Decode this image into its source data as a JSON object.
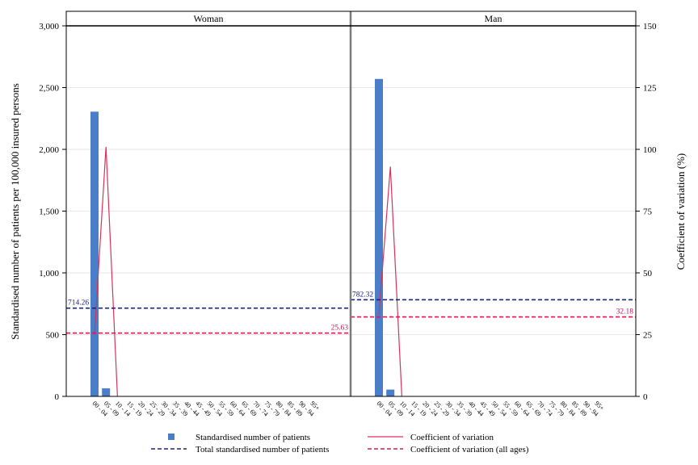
{
  "chart_data": {
    "type": "bar",
    "ylabel": "Standardised number of patients per 100,000 insured persons",
    "y2label": "Coefficient of variation (%)",
    "ylim": [
      0,
      3000
    ],
    "y2lim": [
      0,
      150
    ],
    "yticks": [
      0,
      500,
      1000,
      1500,
      2000,
      2500,
      3000
    ],
    "ytick_labels": [
      "0",
      "500",
      "1,000",
      "1,500",
      "2,000",
      "2,500",
      "3,000"
    ],
    "y2ticks": [
      0,
      25,
      50,
      75,
      100,
      125,
      150
    ],
    "y2tick_labels": [
      "0",
      "25",
      "50",
      "75",
      "100",
      "125",
      "150"
    ],
    "categories": [
      "00 - 04",
      "05 - 09",
      "10 - 14",
      "15 - 19",
      "20 - 24",
      "25 - 29",
      "30 - 34",
      "35 - 39",
      "40 - 44",
      "45 - 49",
      "50 - 54",
      "55 - 59",
      "60 - 64",
      "65 - 69",
      "70 - 74",
      "75 - 79",
      "80 - 84",
      "85 - 89",
      "90 - 94",
      "95+"
    ],
    "grid": true,
    "legend_position": "bottom",
    "panels": [
      {
        "title": "Woman",
        "bars": [
          2305,
          65,
          0,
          0,
          0,
          0,
          0,
          0,
          0,
          0,
          0,
          0,
          0,
          0,
          0,
          0,
          0,
          0,
          0,
          0
        ],
        "cv": [
          25,
          101,
          0,
          null,
          null,
          null,
          null,
          null,
          null,
          null,
          null,
          null,
          null,
          null,
          null,
          null,
          null,
          null,
          null,
          null
        ],
        "total": 714.26,
        "total_label": "714.26",
        "cv_all": 25.63,
        "cv_all_label": "25.63"
      },
      {
        "title": "Man",
        "bars": [
          2570,
          55,
          0,
          0,
          0,
          0,
          0,
          0,
          0,
          0,
          0,
          0,
          0,
          0,
          0,
          0,
          0,
          0,
          0,
          0
        ],
        "cv": [
          33,
          93,
          0,
          null,
          null,
          null,
          null,
          null,
          null,
          null,
          null,
          null,
          null,
          null,
          null,
          null,
          null,
          null,
          null,
          null
        ],
        "total": 782.32,
        "total_label": "782.32",
        "cv_all": 32.18,
        "cv_all_label": "32.18"
      }
    ],
    "legend": [
      {
        "key": "bars",
        "label": "Standardised number of patients"
      },
      {
        "key": "cv",
        "label": "Coefficient of variation"
      },
      {
        "key": "total",
        "label": "Total standardised number of patients"
      },
      {
        "key": "cv_all",
        "label": "Coefficient of variation (all ages)"
      }
    ],
    "colors": {
      "bar": "#4a7ec8",
      "cv_line": "#d6335c",
      "total_line": "#1c237d",
      "cv_all_line": "#e8134e",
      "total_text": "#1c237d",
      "cv_all_text": "#c2185b",
      "grid": "#e6e6e6"
    }
  }
}
